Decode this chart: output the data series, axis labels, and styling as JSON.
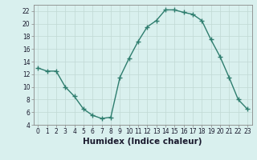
{
  "x": [
    0,
    1,
    2,
    3,
    4,
    5,
    6,
    7,
    8,
    9,
    10,
    11,
    12,
    13,
    14,
    15,
    16,
    17,
    18,
    19,
    20,
    21,
    22,
    23
  ],
  "y": [
    13,
    12.5,
    12.5,
    10.0,
    8.5,
    6.5,
    5.5,
    5.0,
    5.2,
    11.5,
    14.5,
    17.2,
    19.5,
    20.5,
    22.2,
    22.2,
    21.8,
    21.5,
    20.5,
    17.5,
    14.8,
    11.5,
    8.0,
    6.5
  ],
  "line_color": "#2e7d6e",
  "marker": "+",
  "marker_size": 4,
  "marker_linewidth": 1.0,
  "bg_color": "#d9f0ee",
  "grid_color": "#c0d8d4",
  "xlabel": "Humidex (Indice chaleur)",
  "ylim": [
    4,
    23
  ],
  "yticks": [
    4,
    6,
    8,
    10,
    12,
    14,
    16,
    18,
    20,
    22
  ],
  "xticks": [
    0,
    1,
    2,
    3,
    4,
    5,
    6,
    7,
    8,
    9,
    10,
    11,
    12,
    13,
    14,
    15,
    16,
    17,
    18,
    19,
    20,
    21,
    22,
    23
  ],
  "tick_fontsize": 5.5,
  "xlabel_fontsize": 7.5,
  "tick_color": "#1a1a2e",
  "spine_color": "#888888",
  "linewidth": 1.0
}
